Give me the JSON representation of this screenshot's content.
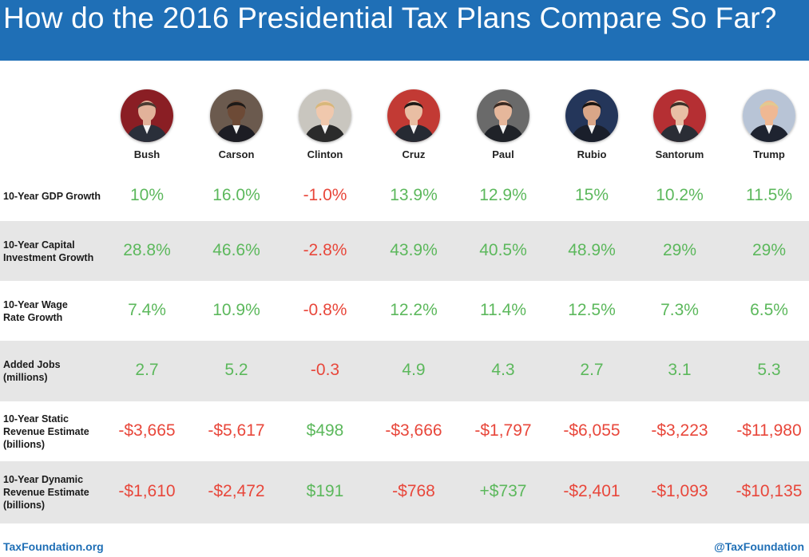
{
  "header": {
    "title": "How do the 2016 Presidential  Tax Plans Compare So Far?"
  },
  "candidates": [
    {
      "name": "Bush",
      "suit": "#2a2f3a",
      "bg": "#8a1e24",
      "hair": "#4a3b32",
      "skin": "#e2b29a"
    },
    {
      "name": "Carson",
      "suit": "#1d1d24",
      "bg": "#6b5a4e",
      "hair": "#1e1a18",
      "skin": "#6d4a36"
    },
    {
      "name": "Clinton",
      "suit": "#2b2b2b",
      "bg": "#c9c6bf",
      "hair": "#d8b77a",
      "skin": "#f0c8ad"
    },
    {
      "name": "Cruz",
      "suit": "#262a33",
      "bg": "#c23a34",
      "hair": "#1f1a17",
      "skin": "#e9bea3"
    },
    {
      "name": "Paul",
      "suit": "#1f2228",
      "bg": "#6a6a6a",
      "hair": "#3a2a22",
      "skin": "#e6b79b"
    },
    {
      "name": "Rubio",
      "suit": "#1a1f2b",
      "bg": "#24365a",
      "hair": "#1a1512",
      "skin": "#d9a688"
    },
    {
      "name": "Santorum",
      "suit": "#2a2d35",
      "bg": "#b52f33",
      "hair": "#3b3029",
      "skin": "#e8bfa5"
    },
    {
      "name": "Trump",
      "suit": "#1e2330",
      "bg": "#b8c4d6",
      "hair": "#e2c98f",
      "skin": "#efb893"
    }
  ],
  "chart_data": {
    "type": "table",
    "title": "How do the 2016 Presidential  Tax Plans Compare So Far?",
    "columns": [
      "Bush",
      "Carson",
      "Clinton",
      "Cruz",
      "Paul",
      "Rubio",
      "Santorum",
      "Trump"
    ],
    "rows": [
      {
        "label_lines": [
          "10-Year GDP Growth"
        ],
        "shaded": false,
        "values": [
          "10%",
          "16.0%",
          "-1.0%",
          "13.9%",
          "12.9%",
          "15%",
          "10.2%",
          "11.5%"
        ],
        "signs": [
          "pos",
          "pos",
          "neg",
          "pos",
          "pos",
          "pos",
          "pos",
          "pos"
        ]
      },
      {
        "label_lines": [
          "10-Year Capital",
          "Investment Growth"
        ],
        "shaded": true,
        "values": [
          "28.8%",
          "46.6%",
          "-2.8%",
          "43.9%",
          "40.5%",
          "48.9%",
          "29%",
          "29%"
        ],
        "signs": [
          "pos",
          "pos",
          "neg",
          "pos",
          "pos",
          "pos",
          "pos",
          "pos"
        ]
      },
      {
        "label_lines": [
          "10-Year Wage",
          "Rate Growth"
        ],
        "shaded": false,
        "values": [
          "7.4%",
          "10.9%",
          "-0.8%",
          "12.2%",
          "11.4%",
          "12.5%",
          "7.3%",
          "6.5%"
        ],
        "signs": [
          "pos",
          "pos",
          "neg",
          "pos",
          "pos",
          "pos",
          "pos",
          "pos"
        ]
      },
      {
        "label_lines": [
          "Added Jobs",
          "(millions)"
        ],
        "shaded": true,
        "values": [
          "2.7",
          "5.2",
          "-0.3",
          "4.9",
          "4.3",
          "2.7",
          "3.1",
          "5.3"
        ],
        "signs": [
          "pos",
          "pos",
          "neg",
          "pos",
          "pos",
          "pos",
          "pos",
          "pos"
        ]
      },
      {
        "label_lines": [
          "10-Year Static",
          "Revenue Estimate",
          "(billions)"
        ],
        "shaded": false,
        "values": [
          "-$3,665",
          "-$5,617",
          "$498",
          "-$3,666",
          "-$1,797",
          "-$6,055",
          "-$3,223",
          "-$11,980"
        ],
        "signs": [
          "neg",
          "neg",
          "pos",
          "neg",
          "neg",
          "neg",
          "neg",
          "neg"
        ]
      },
      {
        "label_lines": [
          "10-Year Dynamic",
          "Revenue Estimate",
          "(billions)"
        ],
        "shaded": true,
        "values": [
          "-$1,610",
          "-$2,472",
          "$191",
          "-$768",
          "+$737",
          "-$2,401",
          "-$1,093",
          "-$10,135"
        ],
        "signs": [
          "neg",
          "neg",
          "pos",
          "neg",
          "pos",
          "neg",
          "neg",
          "neg"
        ]
      }
    ]
  },
  "colors": {
    "header_bg": "#1f6fb6",
    "positive": "#5cb85c",
    "negative": "#e8473b",
    "shaded_row": "#e6e6e6",
    "link": "#1f6fb6"
  },
  "footer": {
    "left": "TaxFoundation.org",
    "right": "@TaxFoundation"
  }
}
